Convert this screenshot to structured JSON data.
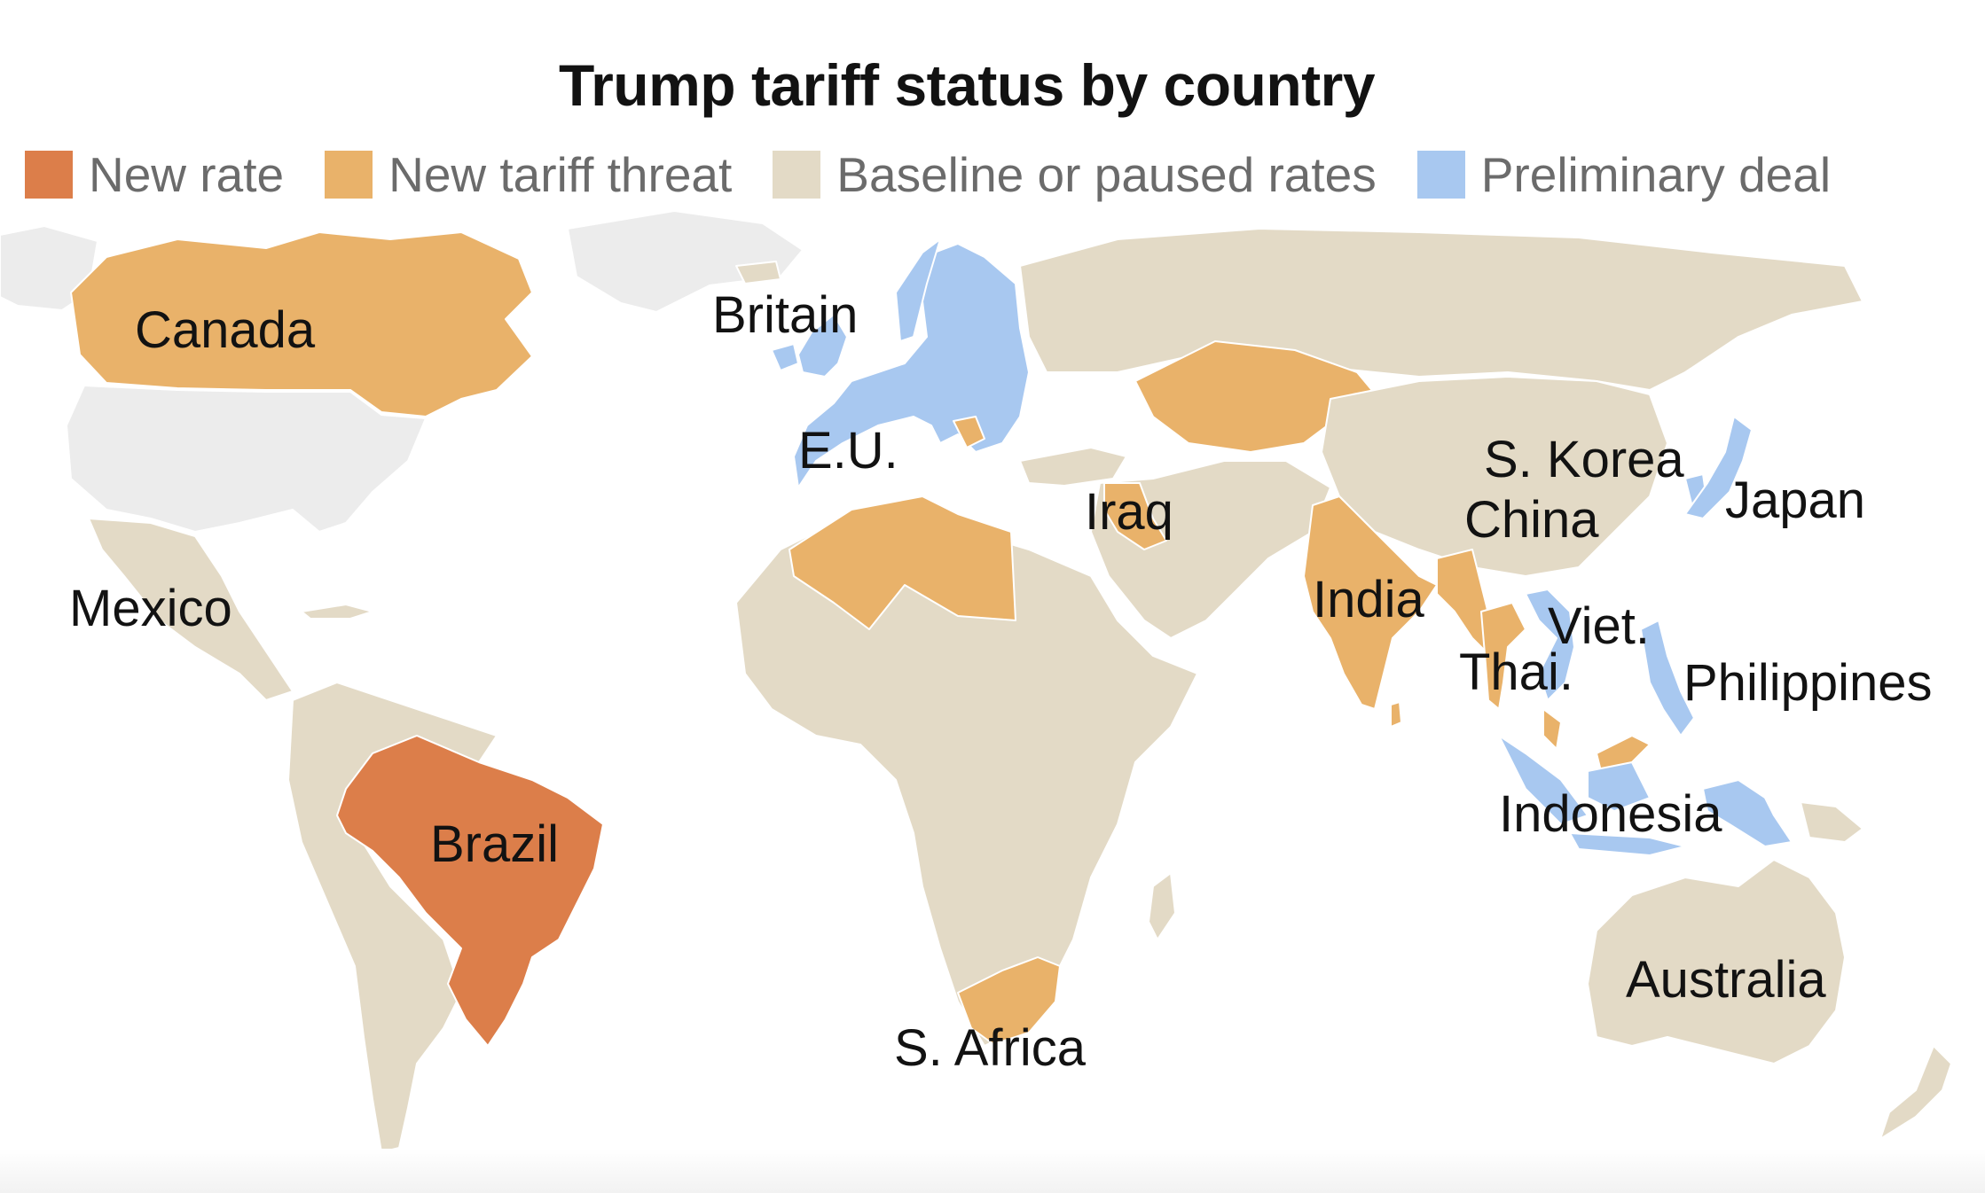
{
  "title": "Trump tariff status by country",
  "legend": [
    {
      "label": "New rate",
      "color": "#dc7e4a"
    },
    {
      "label": "New tariff threat",
      "color": "#e9b26a"
    },
    {
      "label": "Baseline or paused rates",
      "color": "#e3dac6"
    },
    {
      "label": "Preliminary deal",
      "color": "#a8c8f0"
    }
  ],
  "colors": {
    "new_rate": "#dc7e4a",
    "new_tariff_threat": "#e9b26a",
    "baseline": "#e3dac6",
    "preliminary_deal": "#a8c8f0",
    "unclassified": "#ececec"
  },
  "countries": {
    "canada": {
      "label": "Canada",
      "status": "New tariff threat"
    },
    "mexico": {
      "label": "Mexico",
      "status": "Baseline or paused rates"
    },
    "brazil": {
      "label": "Brazil",
      "status": "New rate"
    },
    "britain": {
      "label": "Britain",
      "status": "Preliminary deal"
    },
    "eu": {
      "label": "E.U.",
      "status": "Preliminary deal"
    },
    "iraq": {
      "label": "Iraq",
      "status": "New tariff threat"
    },
    "india": {
      "label": "India",
      "status": "New tariff threat"
    },
    "south_korea": {
      "label": "S. Korea",
      "status": "Preliminary deal"
    },
    "china": {
      "label": "China",
      "status": "Baseline or paused rates"
    },
    "japan": {
      "label": "Japan",
      "status": "Preliminary deal"
    },
    "vietnam": {
      "label": "Viet.",
      "status": "Preliminary deal"
    },
    "thailand": {
      "label": "Thai.",
      "status": "New tariff threat"
    },
    "philippines": {
      "label": "Philippines",
      "status": "Preliminary deal"
    },
    "indonesia": {
      "label": "Indonesia",
      "status": "Preliminary deal"
    },
    "australia": {
      "label": "Australia",
      "status": "Baseline or paused rates"
    },
    "south_africa": {
      "label": "S. Africa",
      "status": "New tariff threat"
    }
  }
}
